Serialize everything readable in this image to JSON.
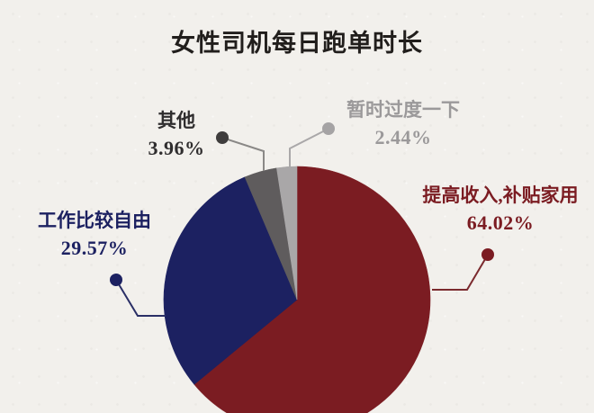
{
  "page": {
    "background": "#f2f0ec"
  },
  "chart_data": {
    "type": "pie",
    "title": "女性司机每日跑单时长",
    "direction": "clockwise",
    "start_angle": "12-oclock",
    "legend_position": "callout-labels",
    "slices": [
      {
        "label": "提高收入,补贴家用",
        "pct": "64.02%",
        "value": 64.02,
        "color": "#7b1c22",
        "text_color": "#7b1c22",
        "dot_color": "#7b1c22",
        "line_color": "#7b2a2e"
      },
      {
        "label": "工作比较自由",
        "pct": "29.57%",
        "value": 29.57,
        "color": "#1c2161",
        "text_color": "#1c2161",
        "dot_color": "#1c2161",
        "line_color": "#2a2f66"
      },
      {
        "label": "其他",
        "pct": "3.96%",
        "value": 3.96,
        "color": "#5f5c5d",
        "text_color": "#2f2d2e",
        "dot_color": "#3f3d3d",
        "line_color": "#8a8886"
      },
      {
        "label": "暂时过度一下",
        "pct": "2.44%",
        "value": 2.44,
        "color": "#a9a7a8",
        "text_color": "#9b999a",
        "dot_color": "#a5a3a4",
        "line_color": "#aaa8a9"
      }
    ]
  }
}
